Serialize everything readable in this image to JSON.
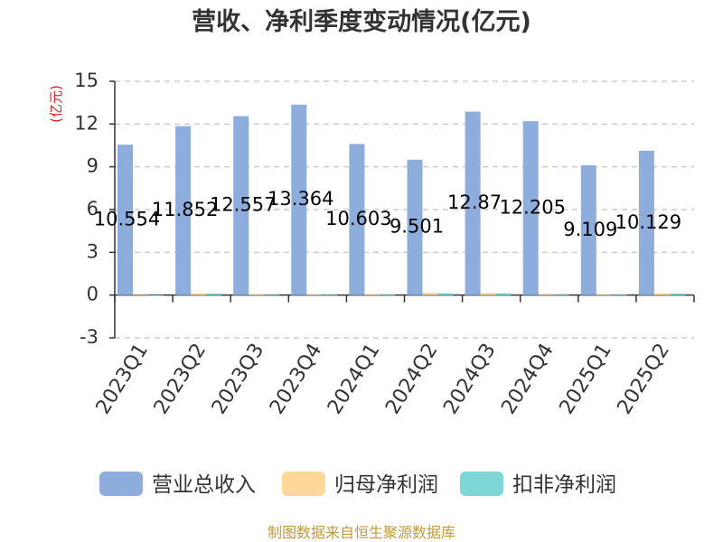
{
  "chart_data": {
    "type": "bar",
    "title": "营收、净利季度变动情况(亿元)",
    "xlabel": "",
    "ylabel": "(亿元)",
    "ylim": [
      -3,
      15
    ],
    "yticks": [
      15,
      12,
      9,
      6,
      3,
      0,
      -3
    ],
    "grid": true,
    "legend_position": "bottom",
    "categories": [
      "2023Q1",
      "2023Q2",
      "2023Q3",
      "2023Q4",
      "2024Q1",
      "2024Q2",
      "2024Q3",
      "2024Q4",
      "2025Q1",
      "2025Q2"
    ],
    "series": [
      {
        "name": "营业总收入",
        "color": "#8daedc",
        "values": [
          10.554,
          11.852,
          12.557,
          13.364,
          10.603,
          9.501,
          12.87,
          12.205,
          9.109,
          10.129
        ],
        "labels": [
          "10.554",
          "11.852",
          "12.557",
          "13.364",
          "10.603",
          "9.501",
          "12.87",
          "12.205",
          "9.109",
          "10.129"
        ]
      },
      {
        "name": "归母净利润",
        "color": "#fdd89a",
        "values": [
          0.03,
          0.12,
          0.05,
          0.06,
          0.07,
          0.15,
          0.14,
          0.04,
          0.05,
          0.12
        ]
      },
      {
        "name": "扣非净利润",
        "color": "#7ed6d6",
        "values": [
          -0.05,
          0.11,
          0.03,
          0.04,
          0.05,
          0.13,
          0.13,
          0.03,
          0.04,
          0.11
        ]
      }
    ]
  },
  "footer": "制图数据来自恒生聚源数据库",
  "colors": {
    "ylabel": "#e02020",
    "footer": "#c29a3a",
    "grid": "#cccccc",
    "axis": "#333333"
  }
}
